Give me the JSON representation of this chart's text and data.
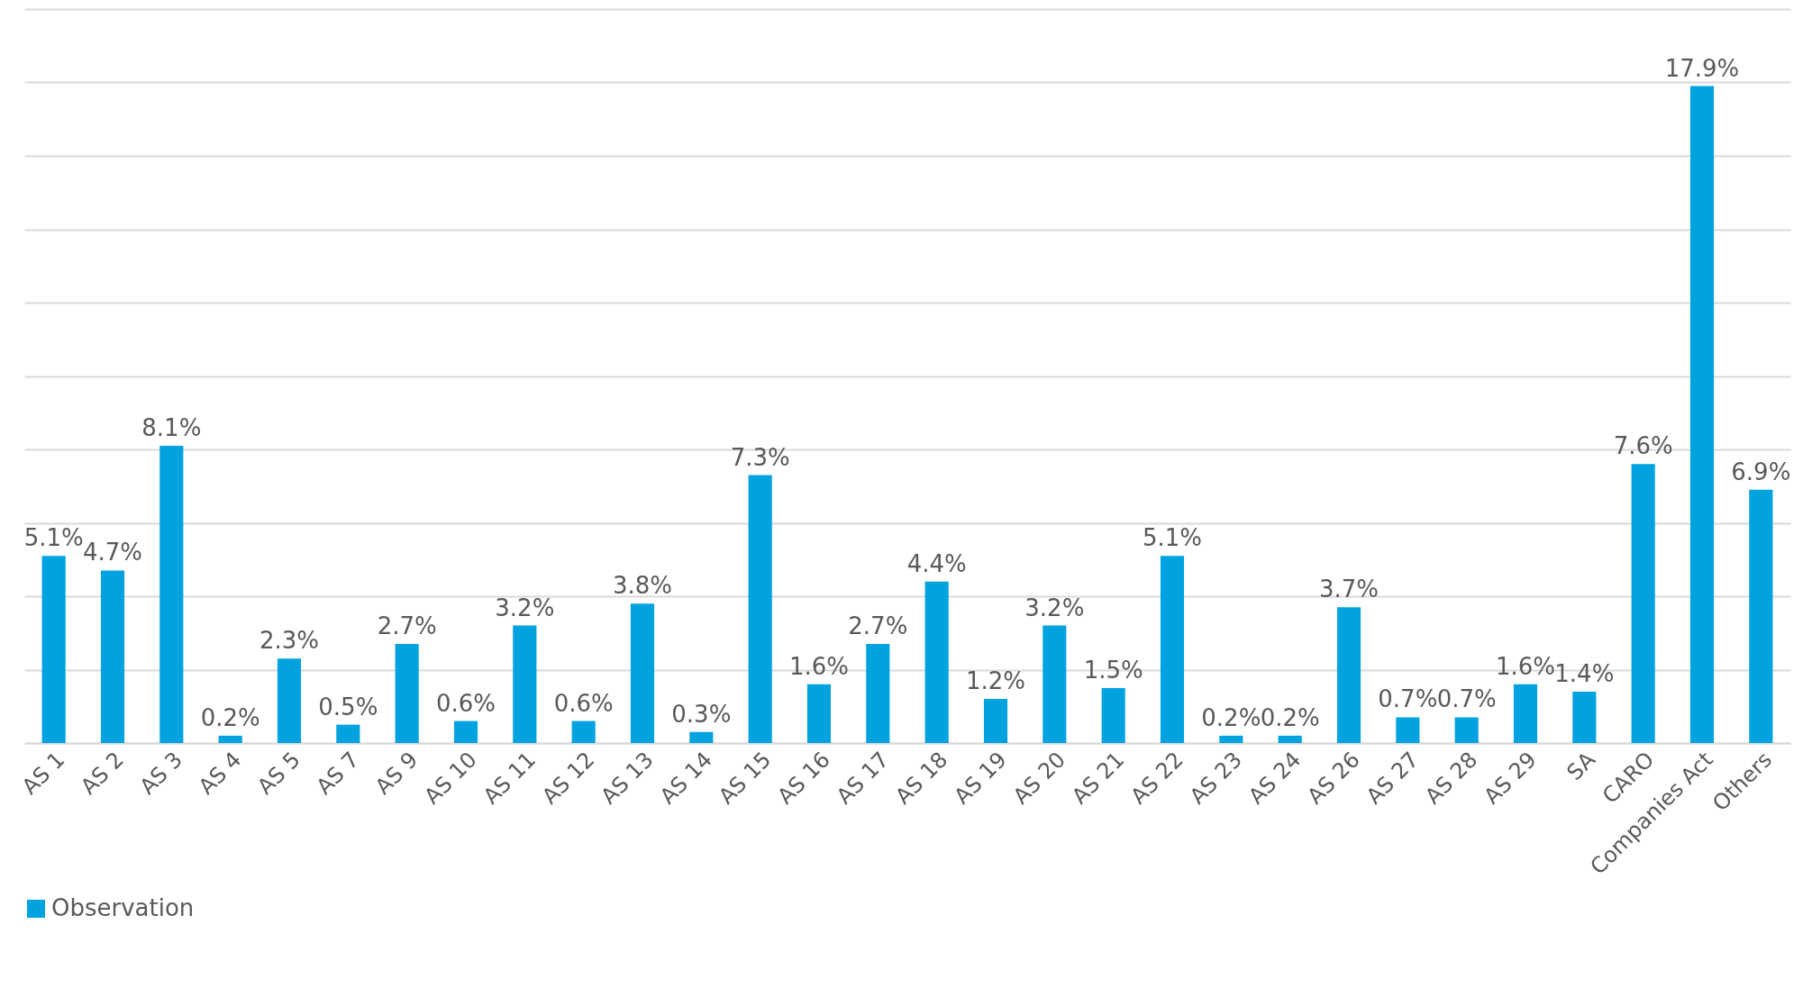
{
  "chart_data": {
    "type": "bar",
    "categories": [
      "AS 1",
      "AS 2",
      "AS 3",
      "AS 4",
      "AS 5",
      "AS 7",
      "AS 9",
      "AS 10",
      "AS 11",
      "AS 12",
      "AS 13",
      "AS 14",
      "AS 15",
      "AS 16",
      "AS 17",
      "AS 18",
      "AS 19",
      "AS 20",
      "AS 21",
      "AS 22",
      "AS 23",
      "AS 24",
      "AS 26",
      "AS 27",
      "AS 28",
      "AS 29",
      "SA",
      "CARO",
      "Companies Act",
      "Others"
    ],
    "series": [
      {
        "name": "Observation",
        "color": "#00a3e0",
        "values": [
          5.1,
          4.7,
          8.1,
          0.2,
          2.3,
          0.5,
          2.7,
          0.6,
          3.2,
          0.6,
          3.8,
          0.3,
          7.3,
          1.6,
          2.7,
          4.4,
          1.2,
          3.2,
          1.5,
          5.1,
          0.2,
          0.2,
          3.7,
          0.7,
          0.7,
          1.6,
          1.4,
          7.6,
          17.9,
          6.9
        ],
        "value_labels": [
          "5.1%",
          "4.7%",
          "8.1%",
          "0.2%",
          "2.3%",
          "0.5%",
          "2.7%",
          "0.6%",
          "3.2%",
          "0.6%",
          "3.8%",
          "0.3%",
          "7.3%",
          "1.6%",
          "2.7%",
          "4.4%",
          "1.2%",
          "3.2%",
          "1.5%",
          "5.1%",
          "0.2%",
          "0.2%",
          "3.7%",
          "0.7%",
          "0.7%",
          "1.6%",
          "1.4%",
          "7.6%",
          "17.9%",
          "6.9%"
        ]
      }
    ],
    "ylim": [
      0,
      20
    ],
    "yticks": [
      {
        "value": 0,
        "label": null
      },
      {
        "value": 2,
        "label": null
      },
      {
        "value": 4,
        "label": null
      },
      {
        "value": 6,
        "label": null
      },
      {
        "value": 8,
        "label": null
      },
      {
        "value": 10,
        "label": null
      },
      {
        "value": 12,
        "label": null
      },
      {
        "value": 14,
        "label": null
      },
      {
        "value": 16,
        "label": null
      },
      {
        "value": 18,
        "label": null
      },
      {
        "value": 20,
        "label": null
      }
    ],
    "grid": "y",
    "legend": "bottom",
    "tick_labels": "x"
  }
}
